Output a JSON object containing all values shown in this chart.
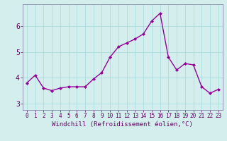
{
  "x": [
    0,
    1,
    2,
    3,
    4,
    5,
    6,
    7,
    8,
    9,
    10,
    11,
    12,
    13,
    14,
    15,
    16,
    17,
    18,
    19,
    20,
    21,
    22,
    23
  ],
  "y": [
    3.8,
    4.1,
    3.6,
    3.5,
    3.6,
    3.65,
    3.65,
    3.65,
    3.95,
    4.2,
    4.8,
    5.2,
    5.35,
    5.5,
    5.7,
    6.2,
    6.5,
    4.8,
    4.3,
    4.55,
    4.5,
    3.65,
    3.4,
    3.55
  ],
  "line_color": "#990099",
  "marker": "D",
  "marker_size": 2.0,
  "line_width": 1.0,
  "xlabel": "Windchill (Refroidissement éolien,°C)",
  "xlim": [
    -0.5,
    23.5
  ],
  "ylim": [
    2.75,
    6.85
  ],
  "yticks": [
    3,
    4,
    5,
    6
  ],
  "xtick_labels": [
    "0",
    "1",
    "2",
    "3",
    "4",
    "5",
    "6",
    "7",
    "8",
    "9",
    "10",
    "11",
    "12",
    "13",
    "14",
    "15",
    "16",
    "17",
    "18",
    "19",
    "20",
    "21",
    "22",
    "23"
  ],
  "grid_color": "#aadddd",
  "bg_color": "#d4eeee",
  "xlabel_color": "#660066",
  "tick_color": "#660066",
  "xlabel_fontsize": 6.5,
  "ytick_fontsize": 7.0,
  "xtick_fontsize": 5.5,
  "spine_color": "#8888aa"
}
